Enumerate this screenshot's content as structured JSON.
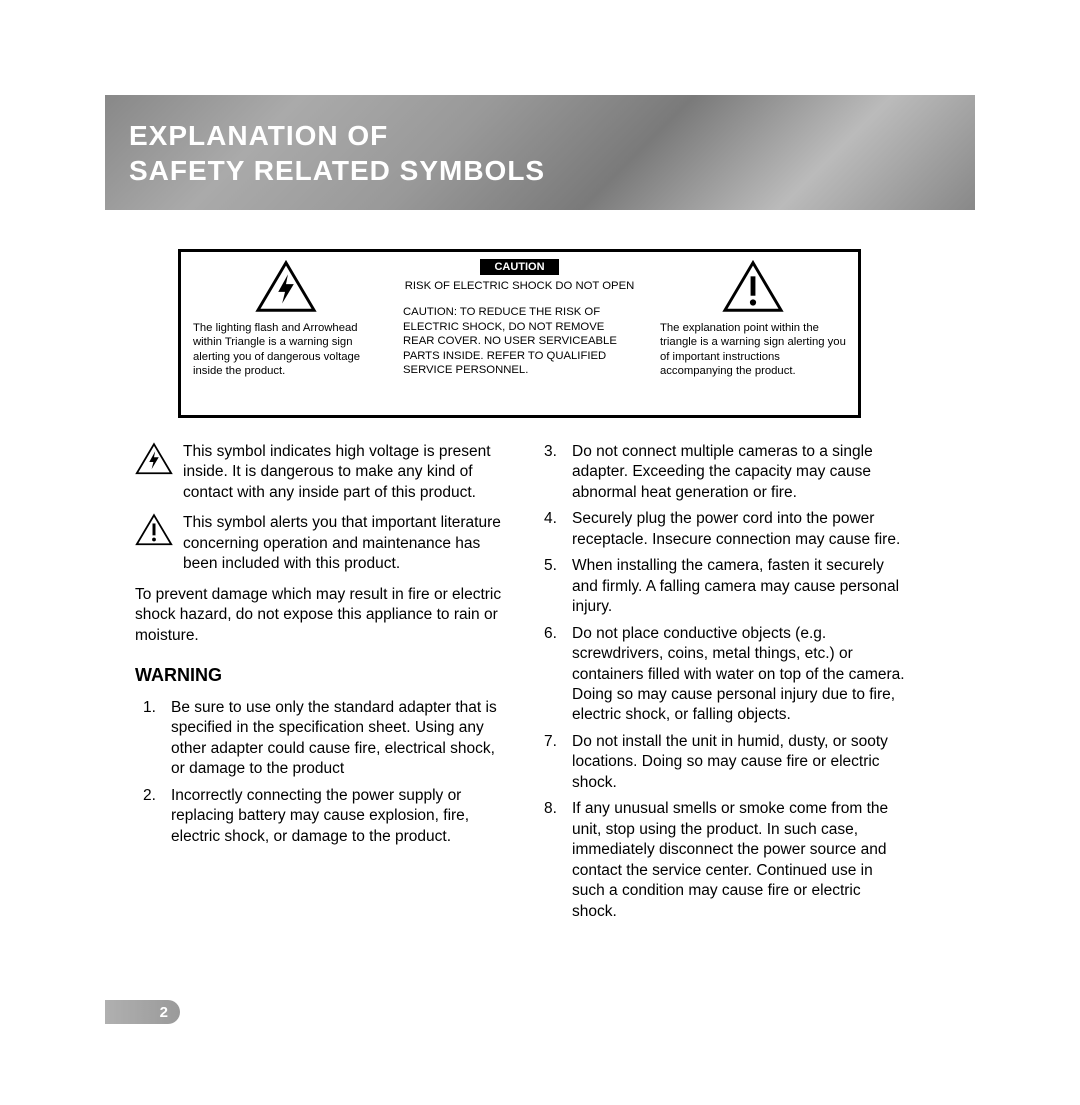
{
  "header": {
    "title_line1": "EXPLANATION OF",
    "title_line2": "SAFETY RELATED SYMBOLS"
  },
  "caution_box": {
    "left_desc": "The lighting flash and Arrowhead within Triangle is a warning sign alerting you of dangerous voltage inside the product.",
    "mid_label": "CAUTION",
    "mid_top": "RISK OF ELECTRIC SHOCK DO NOT OPEN",
    "mid_bottom": "CAUTION: TO REDUCE THE RISK OF ELECTRIC SHOCK, DO NOT REMOVE REAR COVER. NO USER SERVICEABLE PARTS INSIDE. REFER TO QUALIFIED SERVICE PERSONNEL.",
    "right_desc": "The explanation point within the triangle is a warning sign alerting you of important instructions accompanying the product."
  },
  "symbol_explanations": {
    "bolt": "This symbol indicates high voltage is present inside. It is dangerous to make any kind of contact with any inside part of this product.",
    "exclaim": "This symbol alerts you that important literature concerning operation and maintenance has been included with this product."
  },
  "prevent_text": "To prevent damage which may result in fire or electric shock hazard, do not expose this appliance to rain or moisture.",
  "warning_heading": "WARNING",
  "warnings_col1": [
    "Be sure to use only the standard adapter that is specified in the specification sheet. Using any other adapter could cause fire, electrical shock, or damage to the product",
    "Incorrectly connecting the power supply or replacing battery may cause explosion, fire, electric shock, or damage to the product."
  ],
  "warnings_col2": [
    "Do not connect multiple cameras to a single adapter. Exceeding the capacity may cause abnormal heat generation or fire.",
    "Securely plug the power cord into the power receptacle. Insecure connection may cause fire.",
    "When installing the camera, fasten it securely and firmly. A falling camera may cause personal injury.",
    "Do not place conductive objects (e.g. screwdrivers, coins, metal things, etc.) or containers filled with water on top of the camera. Doing so may cause personal injury due to fire, electric shock, or falling objects.",
    "Do not install the unit in humid, dusty, or sooty locations. Doing so may cause fire or electric shock.",
    "If any unusual smells or smoke come from the unit, stop using the product. In such case, immediately disconnect the power source and contact the service center. Continued use in such a condition may cause fire or electric shock."
  ],
  "page_number": "2",
  "colors": {
    "text": "#000000",
    "header_text": "#ffffff",
    "band_grey": "#8a8a8a",
    "page_bg": "#ffffff"
  }
}
